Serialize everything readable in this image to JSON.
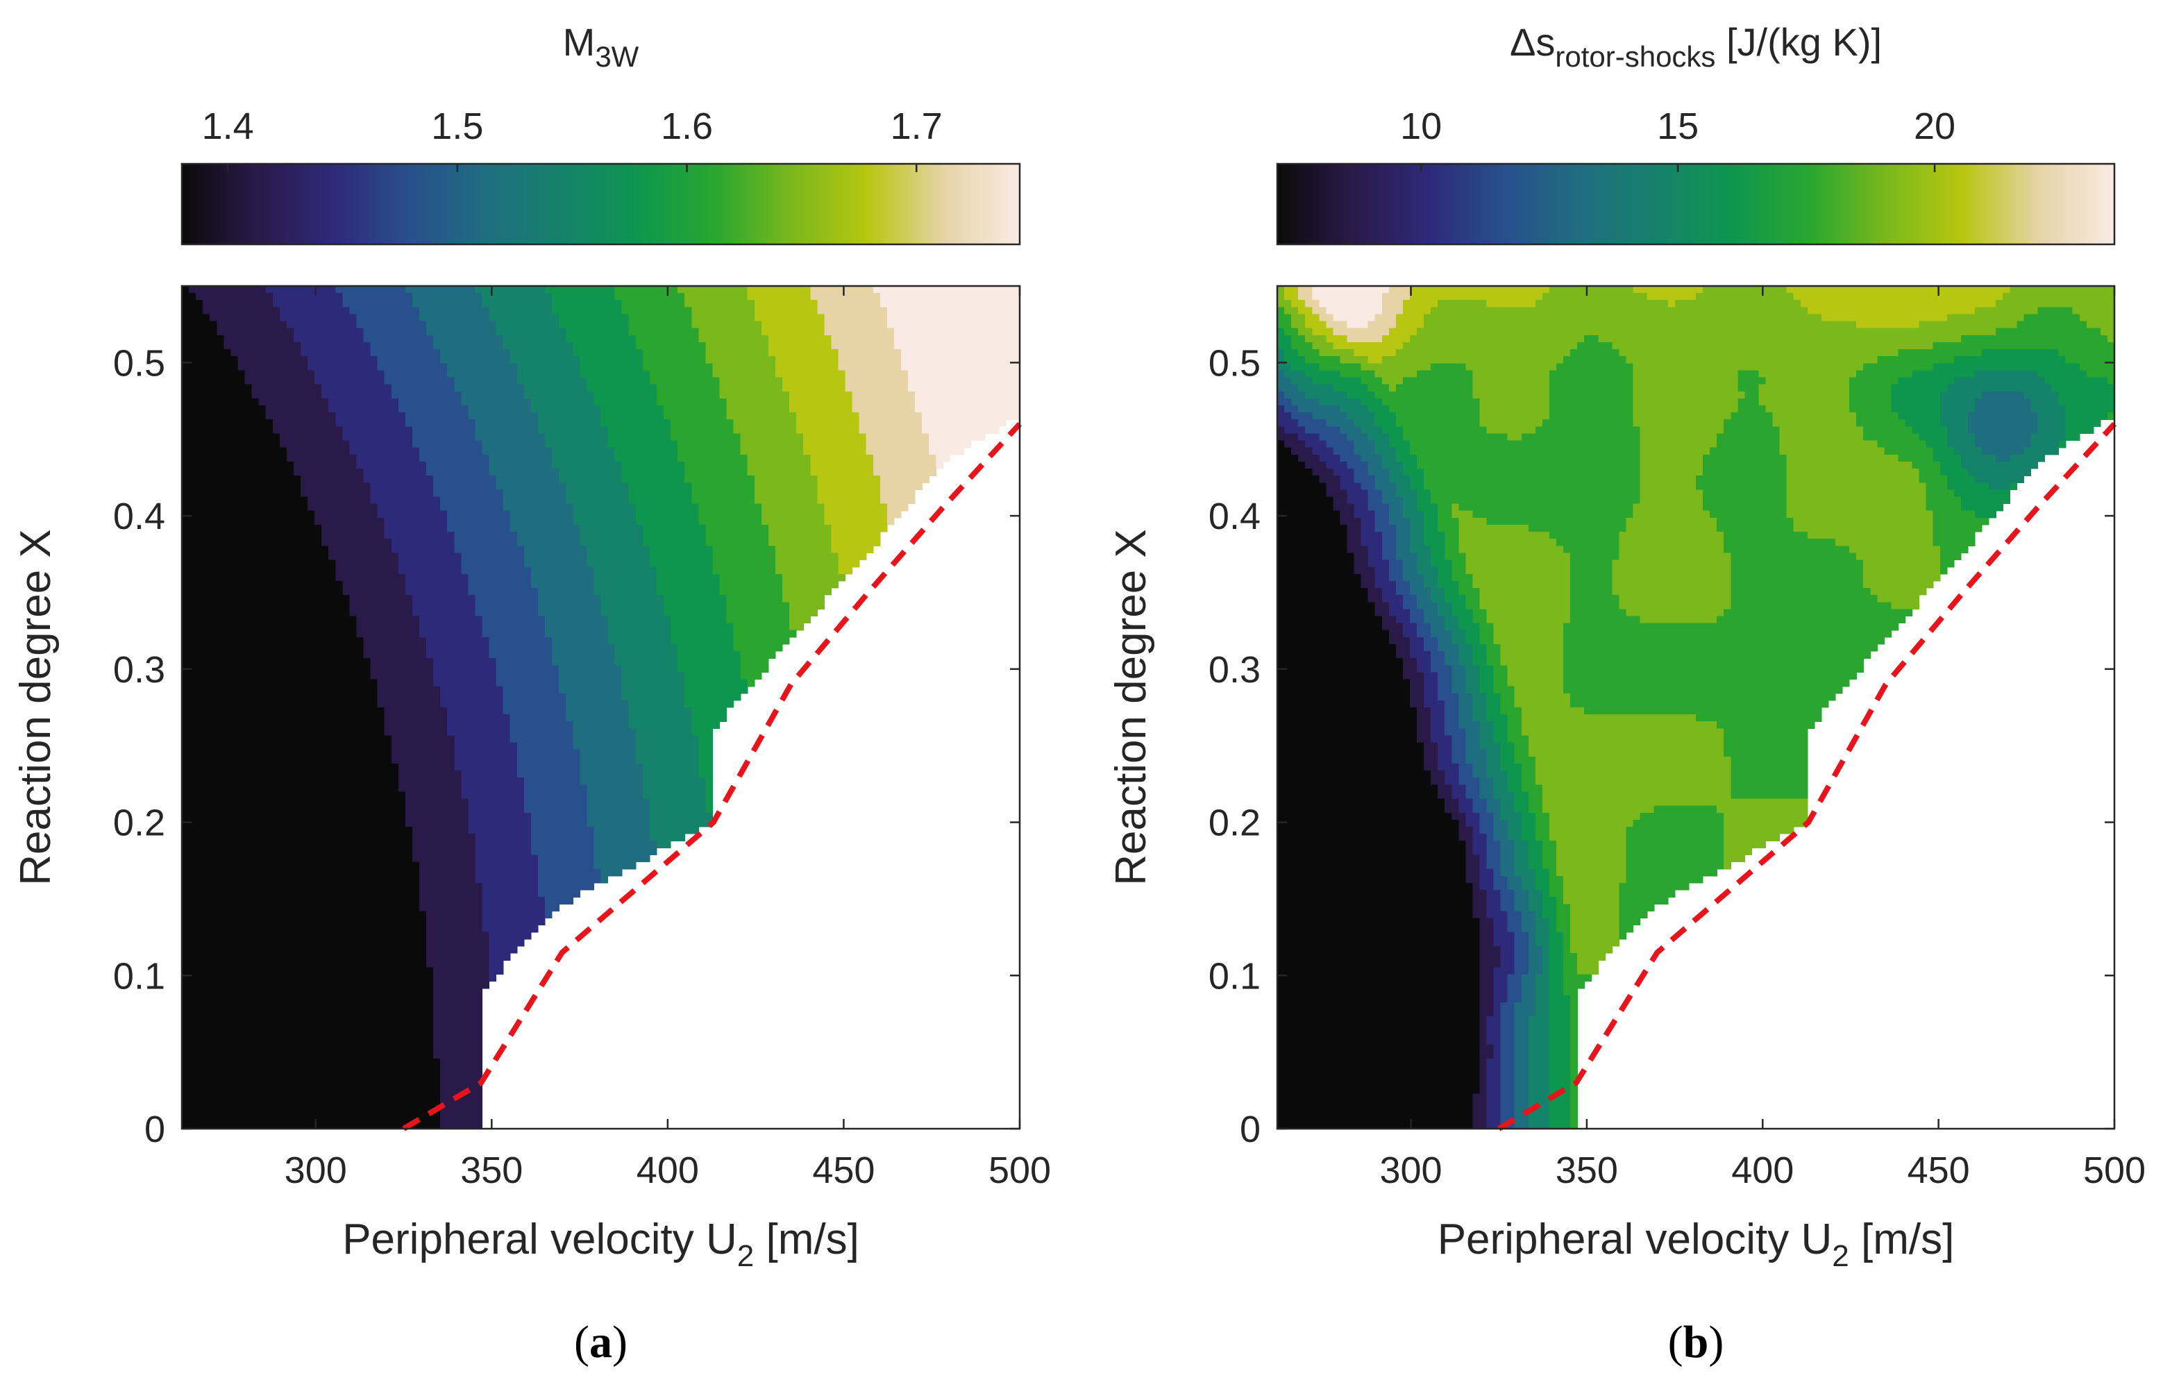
{
  "colormap": [
    "#0a0a0a",
    "#2a1a4a",
    "#2e2a7a",
    "#28508c",
    "#1f6e80",
    "#15826a",
    "#0e964e",
    "#2aa630",
    "#7ab81c",
    "#b7c610",
    "#e6d3a6",
    "#f9ebe4"
  ],
  "chart_data": [
    {
      "type": "contour",
      "panel_label": "(a)",
      "title": "M",
      "title_sub": "3W",
      "colorbar": {
        "range": [
          1.38,
          1.745
        ],
        "ticks": [
          1.4,
          1.5,
          1.6,
          1.7
        ],
        "tick_labels": [
          "1.4",
          "1.5",
          "1.6",
          "1.7"
        ]
      },
      "xlabel": "Peripheral velocity U",
      "xlabel_sub": "2",
      "xlabel_unit": "[m/s]",
      "ylabel": "Reaction degree X",
      "xlim": [
        262,
        500
      ],
      "ylim": [
        0,
        0.55
      ],
      "xticks": [
        300,
        350,
        400,
        450,
        500
      ],
      "yticks": [
        0,
        0.1,
        0.2,
        0.3,
        0.4,
        0.5
      ],
      "ytick_labels": [
        "0",
        "0.1",
        "0.2",
        "0.3",
        "0.4",
        "0.5"
      ],
      "levels": [
        1.38,
        1.41,
        1.44,
        1.47,
        1.5,
        1.53,
        1.56,
        1.59,
        1.62,
        1.65,
        1.68,
        1.71,
        1.745
      ],
      "feasibility_boundary": [
        {
          "x": 325,
          "y": 0
        },
        {
          "x": 347,
          "y": 0.03
        },
        {
          "x": 370,
          "y": 0.115
        },
        {
          "x": 413,
          "y": 0.2
        },
        {
          "x": 435,
          "y": 0.29
        },
        {
          "x": 457,
          "y": 0.35
        },
        {
          "x": 478,
          "y": 0.405
        },
        {
          "x": 500,
          "y": 0.46
        }
      ],
      "staircase_edge": [
        {
          "x": 347,
          "y": 0.03
        },
        {
          "x": 347,
          "y": 0.09
        },
        {
          "x": 369,
          "y": 0.145
        },
        {
          "x": 413,
          "y": 0.2
        },
        {
          "x": 413,
          "y": 0.26
        },
        {
          "x": 435,
          "y": 0.32
        },
        {
          "x": 457,
          "y": 0.375
        },
        {
          "x": 478,
          "y": 0.435
        },
        {
          "x": 500,
          "y": 0.465
        }
      ],
      "boundary_style": "dashed red"
    },
    {
      "type": "contour",
      "panel_label": "(b)",
      "title": "Δs",
      "title_sub": "rotor-shocks",
      "title_unit": " [J/(kg K)]",
      "colorbar": {
        "range": [
          7.2,
          23.5
        ],
        "ticks": [
          10,
          15,
          20
        ],
        "tick_labels": [
          "10",
          "15",
          "20"
        ]
      },
      "xlabel": "Peripheral velocity U",
      "xlabel_sub": "2",
      "xlabel_unit": "[m/s]",
      "ylabel": "Reaction degree X",
      "xlim": [
        262,
        500
      ],
      "ylim": [
        0,
        0.55
      ],
      "xticks": [
        300,
        350,
        400,
        450,
        500
      ],
      "yticks": [
        0,
        0.1,
        0.2,
        0.3,
        0.4,
        0.5
      ],
      "ytick_labels": [
        "0",
        "0.1",
        "0.2",
        "0.3",
        "0.4",
        "0.5"
      ],
      "levels": [
        7.2,
        8.5,
        9.8,
        11.1,
        12.4,
        13.7,
        15.0,
        16.3,
        17.6,
        18.9,
        20.2,
        21.5,
        23.5
      ],
      "feasibility_boundary": [
        {
          "x": 325,
          "y": 0
        },
        {
          "x": 347,
          "y": 0.03
        },
        {
          "x": 370,
          "y": 0.115
        },
        {
          "x": 413,
          "y": 0.2
        },
        {
          "x": 435,
          "y": 0.29
        },
        {
          "x": 457,
          "y": 0.35
        },
        {
          "x": 478,
          "y": 0.405
        },
        {
          "x": 500,
          "y": 0.46
        }
      ],
      "staircase_edge": [
        {
          "x": 347,
          "y": 0.03
        },
        {
          "x": 347,
          "y": 0.09
        },
        {
          "x": 369,
          "y": 0.145
        },
        {
          "x": 413,
          "y": 0.2
        },
        {
          "x": 413,
          "y": 0.26
        },
        {
          "x": 435,
          "y": 0.32
        },
        {
          "x": 457,
          "y": 0.375
        },
        {
          "x": 478,
          "y": 0.435
        },
        {
          "x": 500,
          "y": 0.465
        }
      ],
      "boundary_style": "dashed red"
    }
  ]
}
